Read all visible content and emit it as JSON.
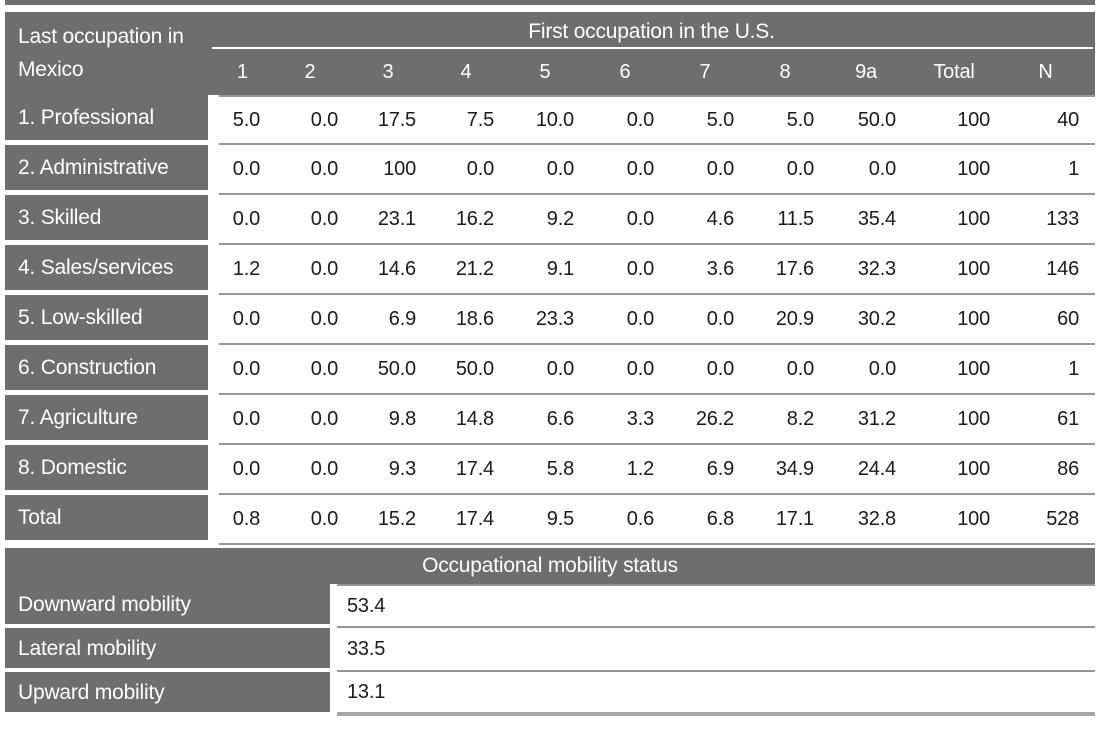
{
  "colors": {
    "header_gray": "#6f6e6e",
    "separator_line": "#969696",
    "bottom_border": "#a6a6a6",
    "cell_text": "#1b1b1b",
    "header_text": "#ffffff"
  },
  "table": {
    "row_header": {
      "line1": "Last occupation in",
      "line2": "Mexico"
    },
    "col_group_title": "First occupation in the U.S.",
    "columns": [
      "1",
      "2",
      "3",
      "4",
      "5",
      "6",
      "7",
      "8",
      "9a",
      "Total",
      "N"
    ],
    "rows": [
      {
        "label": "1. Professional",
        "values": [
          "5.0",
          "0.0",
          "17.5",
          "7.5",
          "10.0",
          "0.0",
          "5.0",
          "5.0",
          "50.0",
          "100",
          "40"
        ]
      },
      {
        "label": "2. Administrative",
        "values": [
          "0.0",
          "0.0",
          "100",
          "0.0",
          "0.0",
          "0.0",
          "0.0",
          "0.0",
          "0.0",
          "100",
          "1"
        ]
      },
      {
        "label": "3. Skilled",
        "values": [
          "0.0",
          "0.0",
          "23.1",
          "16.2",
          "9.2",
          "0.0",
          "4.6",
          "11.5",
          "35.4",
          "100",
          "133"
        ]
      },
      {
        "label": "4. Sales/services",
        "values": [
          "1.2",
          "0.0",
          "14.6",
          "21.2",
          "9.1",
          "0.0",
          "3.6",
          "17.6",
          "32.3",
          "100",
          "146"
        ]
      },
      {
        "label": "5. Low-skilled",
        "values": [
          "0.0",
          "0.0",
          "6.9",
          "18.6",
          "23.3",
          "0.0",
          "0.0",
          "20.9",
          "30.2",
          "100",
          "60"
        ]
      },
      {
        "label": "6. Construction",
        "values": [
          "0.0",
          "0.0",
          "50.0",
          "50.0",
          "0.0",
          "0.0",
          "0.0",
          "0.0",
          "0.0",
          "100",
          "1"
        ]
      },
      {
        "label": "7. Agriculture",
        "values": [
          "0.0",
          "0.0",
          "9.8",
          "14.8",
          "6.6",
          "3.3",
          "26.2",
          "8.2",
          "31.2",
          "100",
          "61"
        ]
      },
      {
        "label": "8. Domestic",
        "values": [
          "0.0",
          "0.0",
          "9.3",
          "17.4",
          "5.8",
          "1.2",
          "6.9",
          "34.9",
          "24.4",
          "100",
          "86"
        ]
      },
      {
        "label": "Total",
        "values": [
          "0.8",
          "0.0",
          "15.2",
          "17.4",
          "9.5",
          "0.6",
          "6.8",
          "17.1",
          "32.8",
          "100",
          "528"
        ]
      }
    ]
  },
  "mobility": {
    "title": "Occupational mobility status",
    "rows": [
      {
        "label": "Downward mobility",
        "value": "53.4"
      },
      {
        "label": "Lateral mobility",
        "value": "33.5"
      },
      {
        "label": "Upward mobility",
        "value": "13.1"
      }
    ]
  }
}
